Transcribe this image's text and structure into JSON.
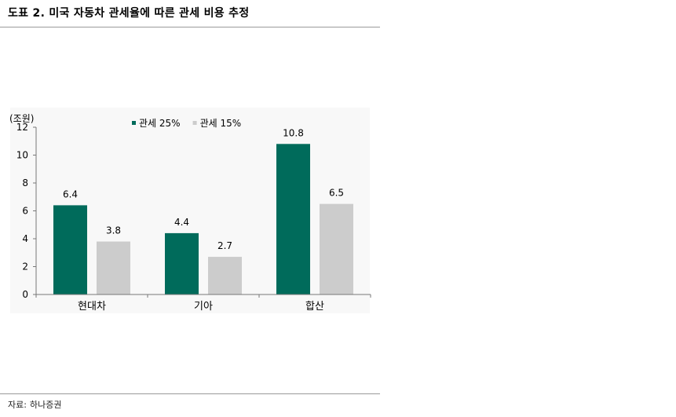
{
  "document": {
    "title": "도표 2. 미국 자동차 관세율에 따른 관세 비용 추정",
    "source_label": "자료:",
    "source_value": "하나증권"
  },
  "chart_data": {
    "type": "bar",
    "unit_label": "(조원)",
    "categories": [
      "현대차",
      "기아",
      "합산"
    ],
    "series": [
      {
        "name": "관세 25%",
        "values": [
          6.4,
          4.4,
          10.8
        ],
        "labels": [
          "6.4",
          "4.4",
          "10.8"
        ],
        "color": "#006b5b"
      },
      {
        "name": "관세 15%",
        "values": [
          3.8,
          2.7,
          6.5
        ],
        "labels": [
          "3.8",
          "2.7",
          "6.5"
        ],
        "color": "#cccccc"
      }
    ],
    "ylim": [
      0,
      12
    ],
    "yticks": [
      "0",
      "2",
      "4",
      "6",
      "8",
      "10",
      "12"
    ],
    "grid": false,
    "legend_position": "top"
  }
}
